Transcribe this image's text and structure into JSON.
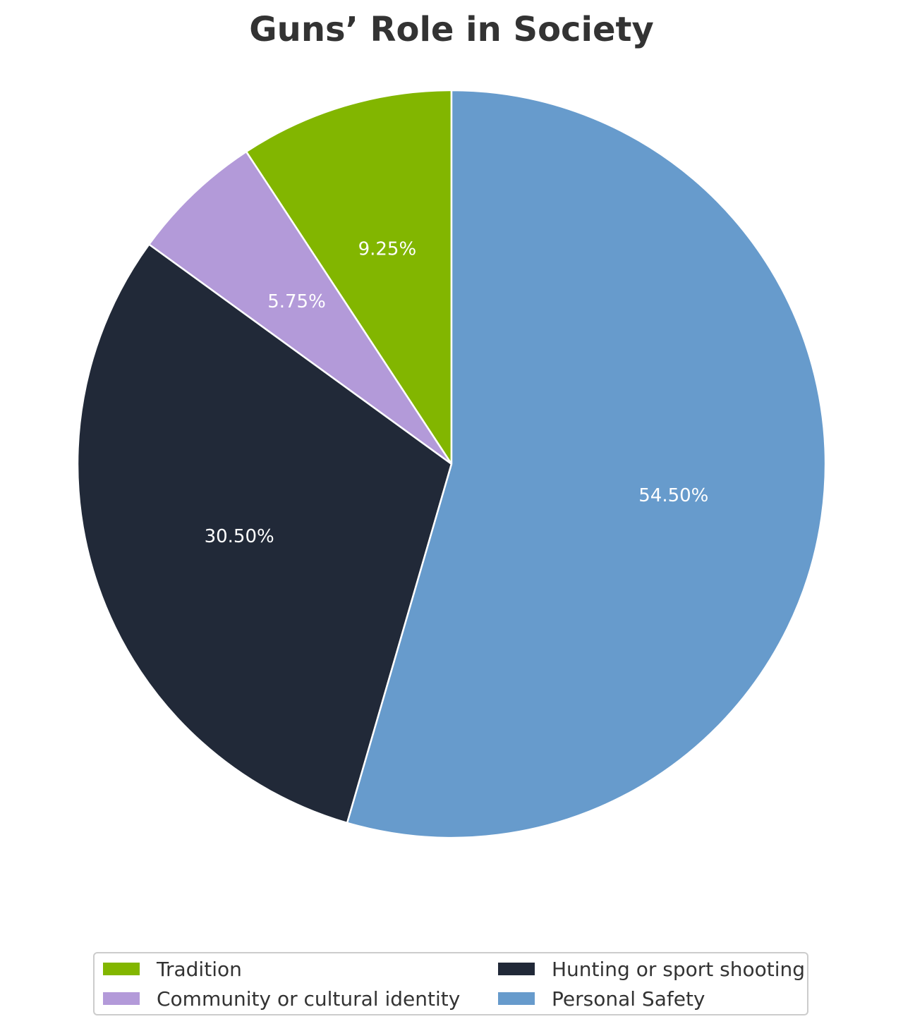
{
  "chart_data": {
    "type": "pie",
    "title": "Guns’ Role in Society",
    "slices": [
      {
        "label": "Tradition",
        "value": 9.25,
        "value_label": "9.25%",
        "color": "#82b600"
      },
      {
        "label": "Community or cultural identity",
        "value": 5.75,
        "value_label": "5.75%",
        "color": "#b39ad9"
      },
      {
        "label": "Hunting or sport shooting",
        "value": 30.5,
        "value_label": "30.50%",
        "color": "#212938"
      },
      {
        "label": "Personal Safety",
        "value": 54.5,
        "value_label": "54.50%",
        "color": "#679bcc"
      }
    ],
    "direction": "counterclockwise",
    "start": "top",
    "legend_position": "bottom-center",
    "legend_columns": 2,
    "label_color": "#ffffff",
    "edge_color": "#ffffff"
  }
}
